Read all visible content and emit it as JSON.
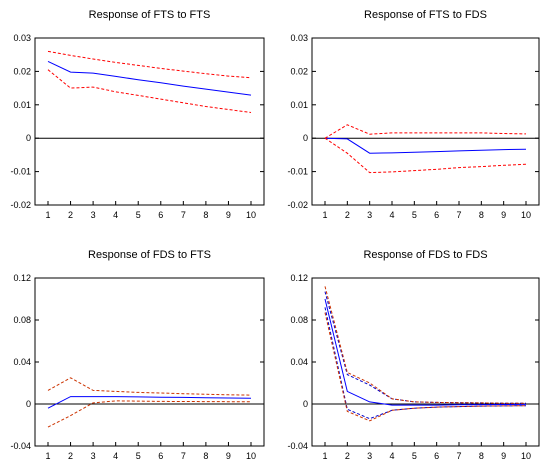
{
  "chart_data": [
    {
      "type": "line",
      "title": "Response of FTS to FTS",
      "x": [
        1,
        2,
        3,
        4,
        5,
        6,
        7,
        8,
        9,
        10
      ],
      "ylim": [
        -0.02,
        0.03
      ],
      "yticks": [
        "0.03",
        "0.02",
        "0.01",
        "0",
        "-0.01",
        "-0.02"
      ],
      "ytick_values": [
        0.03,
        0.02,
        0.01,
        0,
        -0.01,
        -0.02
      ],
      "xticks": [
        "1",
        "2",
        "3",
        "4",
        "5",
        "6",
        "7",
        "8",
        "9",
        "10"
      ],
      "series": [
        {
          "style": "response",
          "color": "#0000ff",
          "values": [
            0.023,
            0.0198,
            0.0195,
            0.0185,
            0.0175,
            0.0166,
            0.0156,
            0.0147,
            0.0138,
            0.0129
          ]
        },
        {
          "style": "upper",
          "color": "#ff0000",
          "values": [
            0.026,
            0.0248,
            0.0237,
            0.0227,
            0.0218,
            0.0209,
            0.0201,
            0.0193,
            0.0186,
            0.0181
          ]
        },
        {
          "style": "lower",
          "color": "#ff0000",
          "values": [
            0.0205,
            0.015,
            0.0153,
            0.0139,
            0.0128,
            0.0117,
            0.0106,
            0.0095,
            0.0086,
            0.0077
          ]
        }
      ],
      "zero_line": true
    },
    {
      "type": "line",
      "title": "Response of FTS to FDS",
      "x": [
        1,
        2,
        3,
        4,
        5,
        6,
        7,
        8,
        9,
        10
      ],
      "ylim": [
        -0.02,
        0.03
      ],
      "yticks": [
        "0.03",
        "0.02",
        "0.01",
        "0",
        "-0.01",
        "-0.02"
      ],
      "ytick_values": [
        0.03,
        0.02,
        0.01,
        0,
        -0.01,
        -0.02
      ],
      "xticks": [
        "1",
        "2",
        "3",
        "4",
        "5",
        "6",
        "7",
        "8",
        "9",
        "10"
      ],
      "series": [
        {
          "style": "response",
          "color": "#0000ff",
          "values": [
            0.0,
            -0.0002,
            -0.0045,
            -0.0044,
            -0.0042,
            -0.004,
            -0.0038,
            -0.0036,
            -0.0034,
            -0.0033
          ]
        },
        {
          "style": "upper",
          "color": "#ff0000",
          "values": [
            0.0,
            0.004,
            0.0012,
            0.0016,
            0.0016,
            0.0016,
            0.0016,
            0.0016,
            0.0014,
            0.0013
          ]
        },
        {
          "style": "lower",
          "color": "#ff0000",
          "values": [
            0.0,
            -0.0045,
            -0.0103,
            -0.0101,
            -0.0097,
            -0.0093,
            -0.0088,
            -0.0085,
            -0.0081,
            -0.0078
          ]
        }
      ],
      "zero_line": true
    },
    {
      "type": "line",
      "title": "Response of FDS to FTS",
      "x": [
        1,
        2,
        3,
        4,
        5,
        6,
        7,
        8,
        9,
        10
      ],
      "ylim": [
        -0.04,
        0.12
      ],
      "yticks": [
        "0.12",
        "0.08",
        "0.04",
        "0",
        "-0.04"
      ],
      "ytick_values": [
        0.12,
        0.08,
        0.04,
        0,
        -0.04
      ],
      "xticks": [
        "1",
        "2",
        "3",
        "4",
        "5",
        "6",
        "7",
        "8",
        "9",
        "10"
      ],
      "series": [
        {
          "style": "response",
          "color": "#0000ff",
          "values": [
            -0.004,
            0.007,
            0.007,
            0.007,
            0.0068,
            0.0065,
            0.0063,
            0.006,
            0.0057,
            0.0055
          ]
        },
        {
          "style": "upper",
          "color": "#cc3300",
          "values": [
            0.013,
            0.025,
            0.013,
            0.012,
            0.011,
            0.0105,
            0.0098,
            0.0092,
            0.0088,
            0.0085
          ]
        },
        {
          "style": "lower",
          "color": "#cc3300",
          "values": [
            -0.022,
            -0.011,
            0.001,
            0.003,
            0.0028,
            0.0025,
            0.0024,
            0.0023,
            0.0022,
            0.0021
          ]
        }
      ],
      "zero_line": true
    },
    {
      "type": "line",
      "title": "Response of FDS to FDS",
      "x": [
        1,
        2,
        3,
        4,
        5,
        6,
        7,
        8,
        9,
        10
      ],
      "ylim": [
        -0.04,
        0.12
      ],
      "yticks": [
        "0.12",
        "0.08",
        "0.04",
        "0",
        "-0.04"
      ],
      "ytick_values": [
        0.12,
        0.08,
        0.04,
        0,
        -0.04
      ],
      "xticks": [
        "1",
        "2",
        "3",
        "4",
        "5",
        "6",
        "7",
        "8",
        "9",
        "10"
      ],
      "series": [
        {
          "style": "response",
          "color": "#0000ff",
          "values": [
            0.1,
            0.012,
            0.002,
            -0.001,
            -0.001,
            -0.001,
            -0.0008,
            -0.0006,
            -0.0005,
            -0.0004
          ]
        },
        {
          "style": "upper",
          "color": "#cc3300",
          "values": [
            0.112,
            0.03,
            0.02,
            0.005,
            0.002,
            0.0015,
            0.0012,
            0.001,
            0.0008,
            0.0007
          ]
        },
        {
          "style": "lower",
          "color": "#cc3300",
          "values": [
            0.087,
            -0.007,
            -0.016,
            -0.006,
            -0.004,
            -0.003,
            -0.0025,
            -0.002,
            -0.0018,
            -0.0016
          ]
        }
      ],
      "extra_series": [
        {
          "style": "upper",
          "color": "#0000cc",
          "values": [
            0.107,
            0.028,
            0.018,
            0.005,
            0.002,
            0.0015,
            0.0012,
            0.001,
            0.0008,
            0.0007
          ]
        },
        {
          "style": "lower",
          "color": "#0000cc",
          "values": [
            0.092,
            -0.005,
            -0.014,
            -0.006,
            -0.004,
            -0.003,
            -0.0025,
            -0.002,
            -0.0018,
            -0.0016
          ]
        }
      ],
      "zero_line": true
    }
  ]
}
